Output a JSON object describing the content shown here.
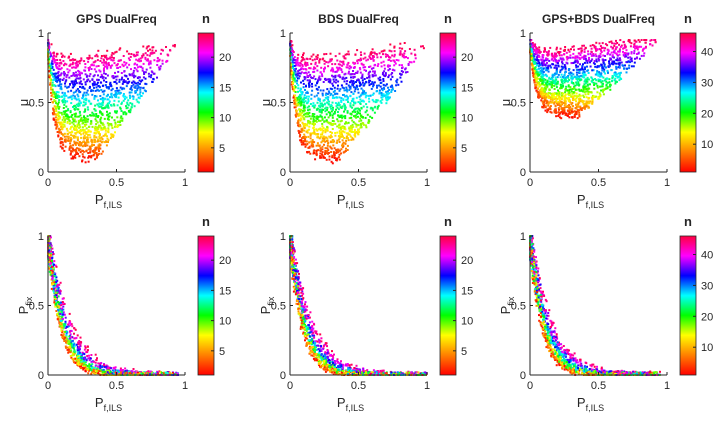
{
  "colormap": [
    "#ff0000",
    "#ff8000",
    "#ffff00",
    "#00ff00",
    "#00ffff",
    "#0000ff",
    "#ff00ff",
    "#ff0040"
  ],
  "chart_data": [
    {
      "type": "scatter",
      "title": "GPS DualFreq",
      "xlabel": "P",
      "xlabel_sub": "f,ILS",
      "ylabel": "μ",
      "ylabel_sub": "",
      "xlim": [
        0,
        1
      ],
      "ylim": [
        0,
        1
      ],
      "xticks": [
        "0",
        "0.5",
        "1"
      ],
      "yticks": [
        "0",
        "0.5",
        "1"
      ],
      "colorbar": {
        "label": "n",
        "min": 1,
        "max": 24,
        "ticks": [
          "5",
          "10",
          "15",
          "20"
        ]
      },
      "series": [
        {
          "name": "n = 1…24",
          "pattern": "mu_bands",
          "n_range": [
            1,
            24
          ],
          "x_range": [
            0,
            0.95
          ],
          "y_range": [
            0,
            0.95
          ]
        }
      ]
    },
    {
      "type": "scatter",
      "title": "BDS DualFreq",
      "xlabel": "P",
      "xlabel_sub": "f,ILS",
      "ylabel": "μ",
      "ylabel_sub": "",
      "xlim": [
        0,
        1
      ],
      "ylim": [
        0,
        1
      ],
      "xticks": [
        "0",
        "0.5",
        "1"
      ],
      "yticks": [
        "0",
        "0.5",
        "1"
      ],
      "colorbar": {
        "label": "n",
        "min": 1,
        "max": 24,
        "ticks": [
          "5",
          "10",
          "15",
          "20"
        ]
      },
      "series": [
        {
          "name": "n = 1…24",
          "pattern": "mu_bands",
          "n_range": [
            1,
            24
          ],
          "x_range": [
            0,
            1
          ],
          "y_range": [
            0,
            0.95
          ]
        }
      ]
    },
    {
      "type": "scatter",
      "title": "GPS+BDS DualFreq",
      "xlabel": "P",
      "xlabel_sub": "f,ILS",
      "ylabel": "μ",
      "ylabel_sub": "",
      "xlim": [
        0,
        1
      ],
      "ylim": [
        0,
        1
      ],
      "xticks": [
        "0",
        "0.5",
        "1"
      ],
      "yticks": [
        "0",
        "0.5",
        "1"
      ],
      "colorbar": {
        "label": "n",
        "min": 1,
        "max": 46,
        "ticks": [
          "10",
          "20",
          "30",
          "40"
        ]
      },
      "series": [
        {
          "name": "n = 1…46",
          "pattern": "mu_bands",
          "n_range": [
            1,
            46
          ],
          "x_range": [
            0,
            0.95
          ],
          "y_range": [
            0.35,
            0.95
          ]
        }
      ]
    },
    {
      "type": "scatter",
      "title": "",
      "xlabel": "P",
      "xlabel_sub": "f,ILS",
      "ylabel": "P",
      "ylabel_sub": "fix",
      "xlim": [
        0,
        1
      ],
      "ylim": [
        0,
        1
      ],
      "xticks": [
        "0",
        "0.5",
        "1"
      ],
      "yticks": [
        "0",
        "0.5",
        "1"
      ],
      "colorbar": {
        "label": "n",
        "min": 1,
        "max": 24,
        "ticks": [
          "5",
          "10",
          "15",
          "20"
        ]
      },
      "series": [
        {
          "name": "n = 1…24",
          "pattern": "pfix_decay",
          "n_range": [
            1,
            24
          ],
          "x_range": [
            0,
            0.95
          ],
          "y_range": [
            0,
            1
          ]
        }
      ]
    },
    {
      "type": "scatter",
      "title": "",
      "xlabel": "P",
      "xlabel_sub": "f,ILS",
      "ylabel": "P",
      "ylabel_sub": "fix",
      "xlim": [
        0,
        1
      ],
      "ylim": [
        0,
        1
      ],
      "xticks": [
        "0",
        "0.5",
        "1"
      ],
      "yticks": [
        "0",
        "0.5",
        "1"
      ],
      "colorbar": {
        "label": "n",
        "min": 1,
        "max": 24,
        "ticks": [
          "5",
          "10",
          "15",
          "20"
        ]
      },
      "series": [
        {
          "name": "n = 1…24",
          "pattern": "pfix_decay",
          "n_range": [
            1,
            24
          ],
          "x_range": [
            0,
            1
          ],
          "y_range": [
            0,
            1
          ]
        }
      ]
    },
    {
      "type": "scatter",
      "title": "",
      "xlabel": "P",
      "xlabel_sub": "f,ILS",
      "ylabel": "P",
      "ylabel_sub": "fix",
      "xlim": [
        0,
        1
      ],
      "ylim": [
        0,
        1
      ],
      "xticks": [
        "0",
        "0.5",
        "1"
      ],
      "yticks": [
        "0",
        "0.5",
        "1"
      ],
      "colorbar": {
        "label": "n",
        "min": 1,
        "max": 46,
        "ticks": [
          "10",
          "20",
          "30",
          "40"
        ]
      },
      "series": [
        {
          "name": "n = 1…46",
          "pattern": "pfix_decay",
          "n_range": [
            1,
            46
          ],
          "x_range": [
            0,
            0.95
          ],
          "y_range": [
            0,
            1
          ]
        }
      ]
    }
  ]
}
